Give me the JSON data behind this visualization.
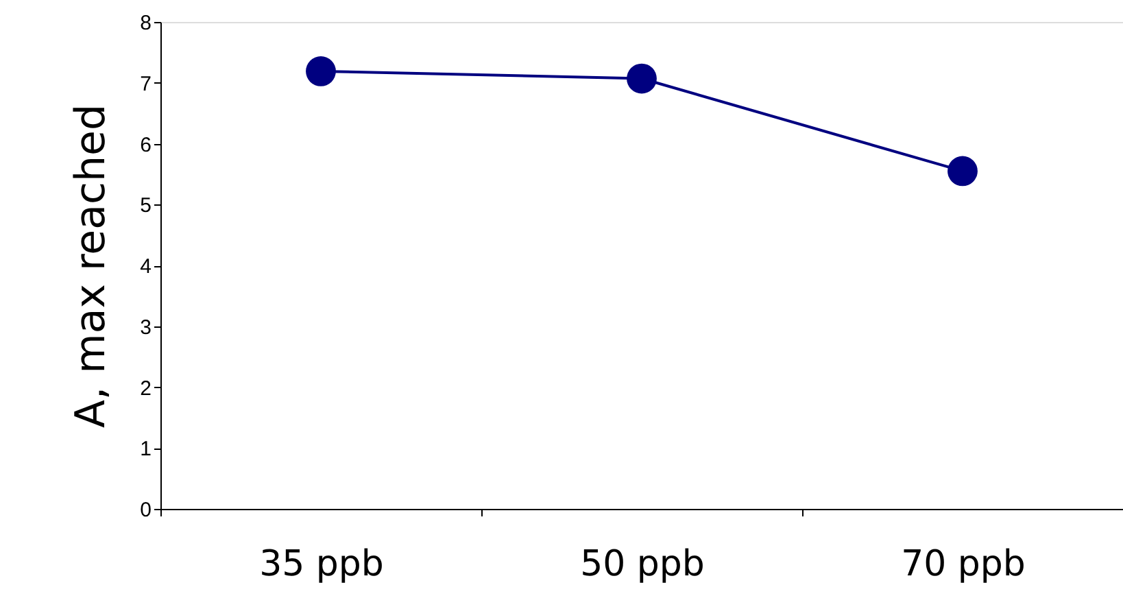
{
  "chart_data": {
    "type": "line",
    "ylabel": "A, max reached",
    "categories": [
      "35 ppb",
      "50 ppb",
      "70 ppb"
    ],
    "series": [
      {
        "color": "#000080",
        "values": [
          7.19,
          7.07,
          5.55
        ]
      }
    ],
    "ylim": [
      0,
      8
    ],
    "yticks": [
      0,
      1,
      2,
      3,
      4,
      5,
      6,
      7,
      8
    ],
    "marker": "circle",
    "line_style": "solid",
    "grid": false
  }
}
